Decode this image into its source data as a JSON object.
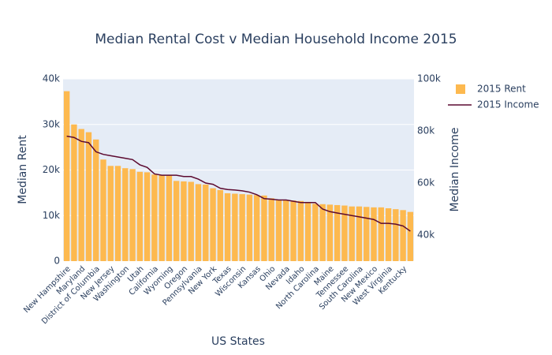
{
  "chart_data": {
    "type": "bar_line",
    "title": "Median Rental Cost v Median Household Income 2015",
    "x_label": "US States",
    "y_label": "Median Rent",
    "y2_label": "Median Income",
    "categories": [
      "New Hampshire",
      null,
      "Maryland",
      null,
      "District of Columbia",
      null,
      "New Jersey",
      null,
      "Washington",
      null,
      "Utah",
      null,
      "California",
      null,
      "Wyoming",
      null,
      "Oregon",
      null,
      "Pennsylvania",
      null,
      "New York",
      null,
      "Texas",
      null,
      "Wisconsin",
      null,
      "Kansas",
      null,
      "Ohio",
      null,
      "Nevada",
      null,
      "Idaho",
      null,
      "North Carolina",
      null,
      "Maine",
      null,
      "Tennessee",
      null,
      "South Carolina",
      null,
      "New Mexico",
      null,
      "West Virginia",
      null,
      "Kentucky",
      null
    ],
    "series": [
      {
        "name": "2015 Rent",
        "type": "bar",
        "color": "#fdb94f",
        "values": [
          37300,
          30000,
          29000,
          28300,
          26700,
          22300,
          20900,
          20900,
          20400,
          20200,
          19600,
          19500,
          19000,
          18900,
          18800,
          17600,
          17500,
          17400,
          16900,
          16800,
          16000,
          15600,
          14900,
          14800,
          14700,
          14600,
          14500,
          14400,
          13800,
          13500,
          13400,
          13300,
          13200,
          13000,
          12600,
          12500,
          12400,
          12300,
          12200,
          12000,
          12000,
          11900,
          11800,
          11800,
          11600,
          11400,
          11200,
          10800
        ]
      },
      {
        "name": "2015 Income",
        "type": "line",
        "axis": "y2",
        "color": "#5c0a30",
        "values": [
          78000,
          77500,
          76000,
          75500,
          72000,
          71000,
          70500,
          70000,
          69500,
          69000,
          67000,
          66000,
          63500,
          63000,
          63000,
          63000,
          62500,
          62500,
          61500,
          60000,
          59500,
          58000,
          57500,
          57300,
          57000,
          56500,
          55500,
          54000,
          53800,
          53500,
          53500,
          53000,
          52500,
          52500,
          52500,
          50000,
          49000,
          48500,
          48000,
          47500,
          47000,
          46500,
          46000,
          44500,
          44500,
          44200,
          43500,
          41500
        ]
      }
    ],
    "ylim": [
      0,
      40000
    ],
    "yticks": [
      0,
      {
        "value": 10000,
        "label": "10k"
      },
      {
        "value": 20000,
        "label": "20k"
      },
      {
        "value": 30000,
        "label": "30k"
      },
      {
        "value": 40000,
        "label": "40k"
      }
    ],
    "y2lim": [
      30000,
      100000
    ],
    "y2ticks": [
      {
        "value": 40000,
        "label": "40k"
      },
      {
        "value": 60000,
        "label": "60k"
      },
      {
        "value": 80000,
        "label": "80k"
      },
      {
        "value": 100000,
        "label": "100k"
      }
    ],
    "grid": true,
    "legend": "right"
  }
}
